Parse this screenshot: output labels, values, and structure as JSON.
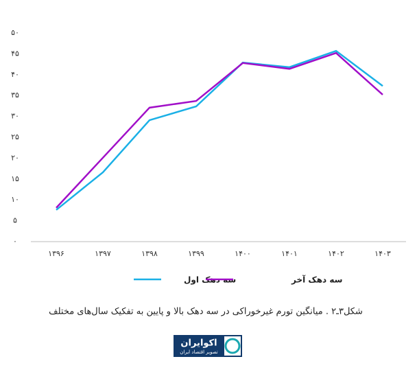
{
  "chart_data": {
    "type": "line",
    "caption": "شکل۳ـ۲ . میانگین تورم غیرخوراکی در سه دهک بالا و پایین به تفکیک سال‌های مختلف",
    "categories": [
      "۱۳۹۶",
      "۱۳۹۷",
      "۱۳۹۸",
      "۱۳۹۹",
      "۱۴۰۰",
      "۱۴۰۱",
      "۱۴۰۲",
      "۱۴۰۳"
    ],
    "series": [
      {
        "name": "سه دهک اول",
        "color": "#1ab0e6",
        "values": [
          7.6,
          16.6,
          29.1,
          32.4,
          42.9,
          41.8,
          45.7,
          37.3
        ]
      },
      {
        "name": "سه دهک آخر",
        "color": "#a10fc8",
        "values": [
          8.1,
          20.1,
          32.1,
          33.7,
          42.8,
          41.4,
          45.2,
          35.2
        ]
      }
    ],
    "ylim": [
      0,
      50
    ],
    "yticks": [
      {
        "value": 0,
        "label": "۰"
      },
      {
        "value": 5,
        "label": "۵"
      },
      {
        "value": 10,
        "label": "۱۰"
      },
      {
        "value": 15,
        "label": "۱۵"
      },
      {
        "value": 20,
        "label": "۲۰"
      },
      {
        "value": 25,
        "label": "۲۵"
      },
      {
        "value": 30,
        "label": "۳۰"
      },
      {
        "value": 35,
        "label": "۳۵"
      },
      {
        "value": 40,
        "label": "۴۰"
      },
      {
        "value": 45,
        "label": "۴۵"
      },
      {
        "value": 50,
        "label": "۵۰"
      }
    ],
    "grid": false
  },
  "logo": {
    "title": "اکوایران",
    "subtitle": "تصویر اقتصاد ایران"
  }
}
